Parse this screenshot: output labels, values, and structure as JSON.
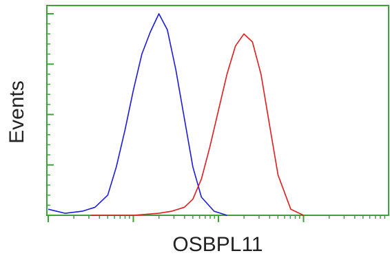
{
  "chart_data": {
    "type": "line",
    "title": "",
    "xlabel": "OSBPL11",
    "ylabel": "Events",
    "x_scale": "log",
    "x_range_decades": [
      0,
      4
    ],
    "ylim": [
      0,
      100
    ],
    "grid": false,
    "legend": "none",
    "colors": {
      "axes": "#3aa335",
      "series_blue": "#1a1adc",
      "series_red": "#e01b1b"
    },
    "series": [
      {
        "color": "#1a1adc",
        "x_decade": [
          0.0,
          0.2,
          0.4,
          0.55,
          0.7,
          0.8,
          0.9,
          1.0,
          1.1,
          1.2,
          1.3,
          1.4,
          1.5,
          1.6,
          1.7,
          1.8,
          1.95,
          2.1
        ],
        "y": [
          3,
          1,
          2,
          4,
          10,
          24,
          42,
          62,
          80,
          91,
          100,
          92,
          72,
          48,
          24,
          9,
          2,
          0
        ]
      },
      {
        "color": "#e01b1b",
        "x_decade": [
          0.5,
          1.0,
          1.3,
          1.45,
          1.6,
          1.7,
          1.8,
          1.9,
          2.0,
          2.1,
          2.2,
          2.3,
          2.4,
          2.5,
          2.6,
          2.7,
          2.85,
          3.0
        ],
        "y": [
          0,
          0,
          1,
          2,
          4,
          8,
          18,
          34,
          52,
          70,
          84,
          90,
          86,
          70,
          45,
          20,
          3,
          0
        ]
      }
    ]
  }
}
